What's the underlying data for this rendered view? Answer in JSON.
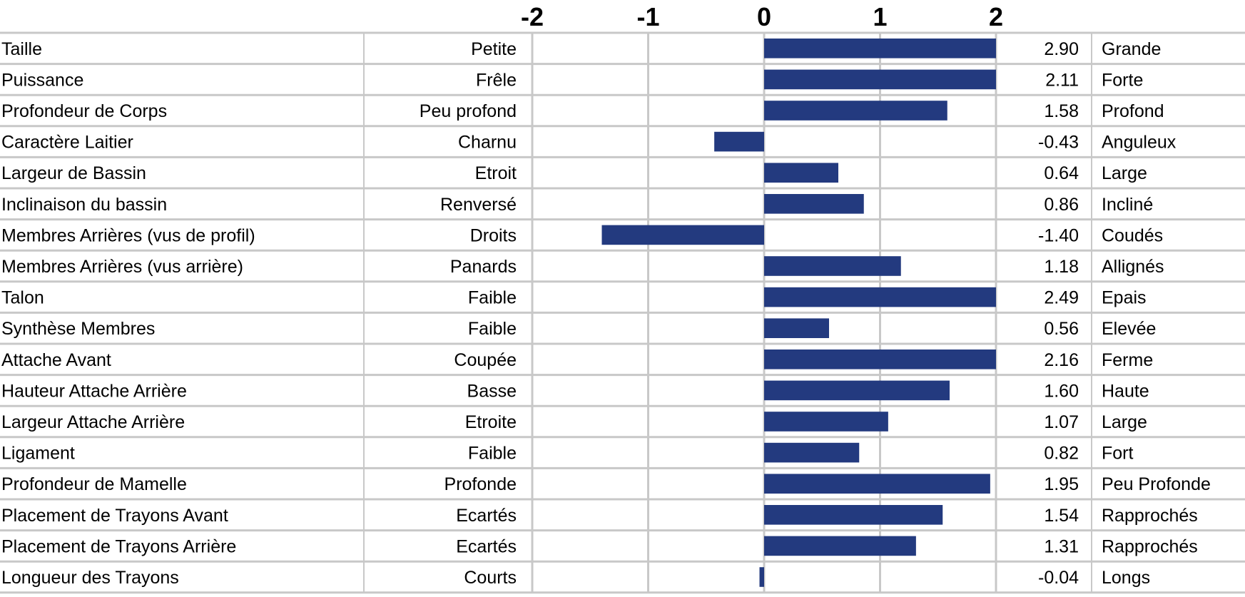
{
  "chart_data": {
    "type": "bar",
    "orientation": "horizontal",
    "title": "",
    "xlabel": "",
    "ylabel": "",
    "xlim": [
      -2,
      2
    ],
    "x_ticks": [
      "-2",
      "-1",
      "0",
      "1",
      "2"
    ],
    "grid": true,
    "bar_color": "#233a7f",
    "grid_color": "#c8c8c8",
    "categories": [
      "Taille",
      "Puissance",
      "Profondeur de Corps",
      "Caractère Laitier",
      "Largeur de Bassin",
      "Inclinaison du bassin",
      "Membres Arrières (vus de profil)",
      "Membres Arrières (vus arrière)",
      "Talon",
      "Synthèse Membres",
      "Attache Avant",
      "Hauteur Attache Arrière",
      "Largeur Attache Arrière",
      "Ligament",
      "Profondeur de Mamelle",
      "Placement de Trayons Avant",
      "Placement de Trayons Arrière",
      "Longueur des Trayons"
    ],
    "low_labels": [
      "Petite",
      "Frêle",
      "Peu profond",
      "Charnu",
      "Etroit",
      "Renversé",
      "Droits",
      "Panards",
      "Faible",
      "Faible",
      "Coupée",
      "Basse",
      "Etroite",
      "Faible",
      "Profonde",
      "Ecartés",
      "Ecartés",
      "Courts"
    ],
    "high_labels": [
      "Grande",
      "Forte",
      "Profond",
      "Anguleux",
      "Large",
      "Incliné",
      "Coudés",
      "Allignés",
      "Epais",
      "Elevée",
      "Ferme",
      "Haute",
      "Large",
      "Fort",
      "Peu Profonde",
      "Rapprochés",
      "Rapprochés",
      "Longs"
    ],
    "values": [
      2.9,
      2.11,
      1.58,
      -0.43,
      0.64,
      0.86,
      -1.4,
      1.18,
      2.49,
      0.56,
      2.16,
      1.6,
      1.07,
      0.82,
      1.95,
      1.54,
      1.31,
      -0.04
    ],
    "value_labels": [
      "2.90",
      "2.11",
      "1.58",
      "-0.43",
      "0.64",
      "0.86",
      "-1.40",
      "1.18",
      "2.49",
      "0.56",
      "2.16",
      "1.60",
      "1.07",
      "0.82",
      "1.95",
      "1.54",
      "1.31",
      "-0.04"
    ]
  }
}
